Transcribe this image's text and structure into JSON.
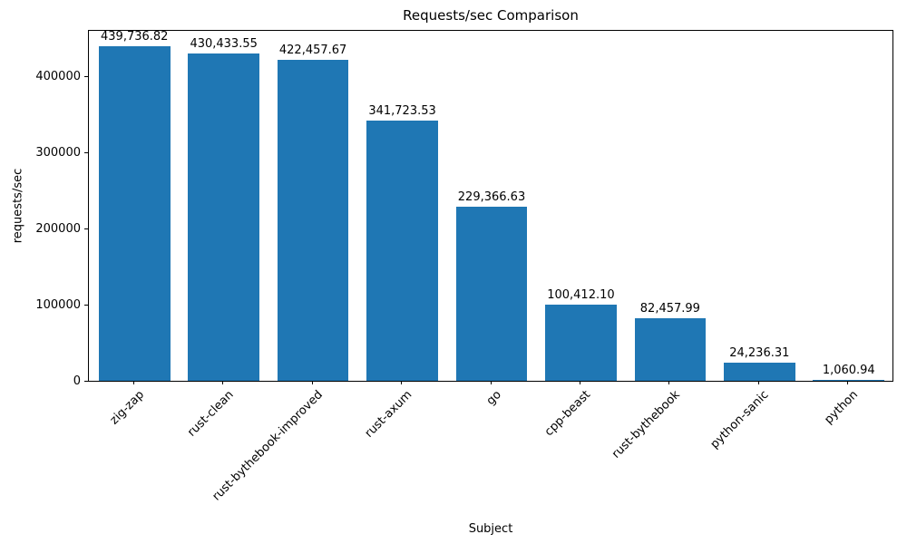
{
  "chart_data": {
    "type": "bar",
    "title": "Requests/sec Comparison",
    "xlabel": "Subject",
    "ylabel": "requests/sec",
    "categories": [
      "zig-zap",
      "rust-clean",
      "rust-bythebook-improved",
      "rust-axum",
      "go",
      "cpp-beast",
      "rust-bythebook",
      "python-sanic",
      "python"
    ],
    "values": [
      439736.82,
      430433.55,
      422457.67,
      341723.53,
      229366.63,
      100412.1,
      82457.99,
      24236.31,
      1060.94
    ],
    "value_labels": [
      "439,736.82",
      "430,433.55",
      "422,457.67",
      "341,723.53",
      "229,366.63",
      "100,412.10",
      "82,457.99",
      "24,236.31",
      "1,060.94"
    ],
    "yticks": [
      0,
      100000,
      200000,
      300000,
      400000
    ],
    "ylim": [
      0,
      460000
    ],
    "bar_color": "#1f77b4",
    "bar_width_ratio": 0.8,
    "grid": false,
    "legend_position": "none"
  }
}
